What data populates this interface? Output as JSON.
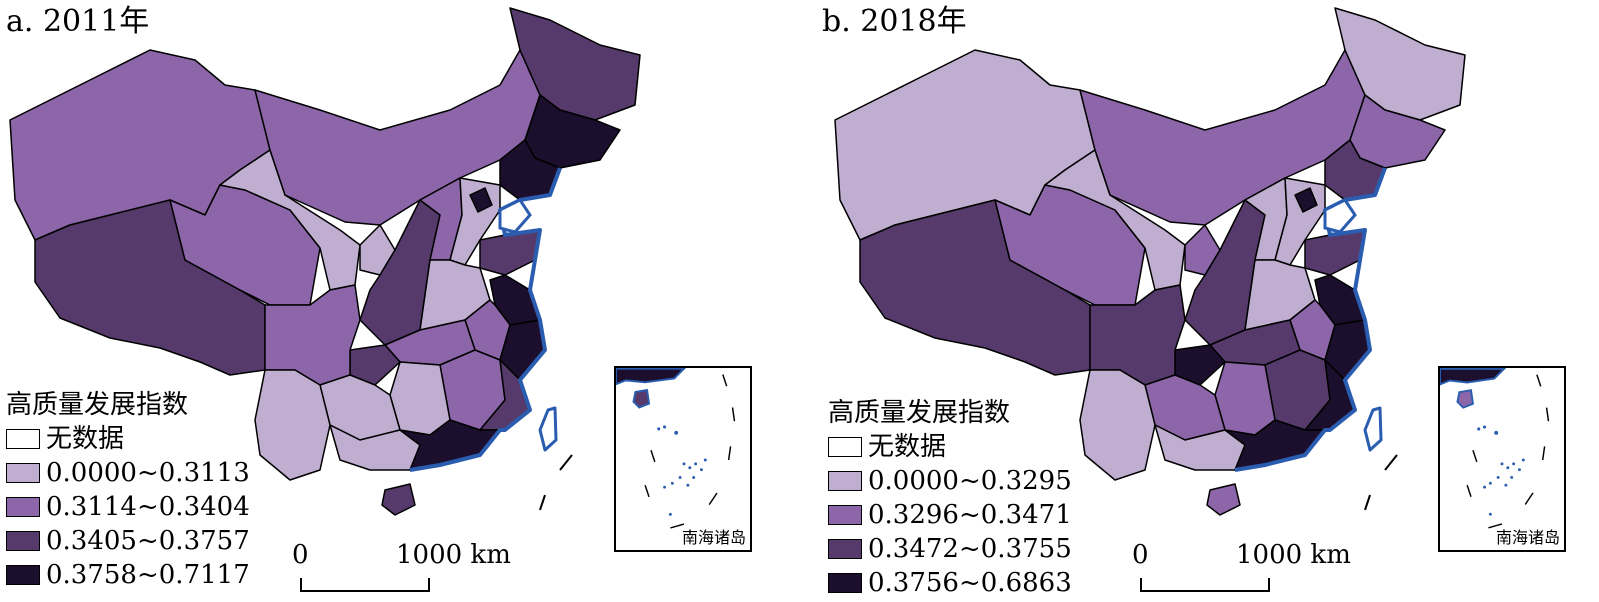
{
  "legend_title": "高质量发展指数",
  "legend_nodata": "无数据",
  "scale_zero": "0",
  "scale_max": "1000 km",
  "inset_label": "南海诸岛",
  "colors": {
    "class1": "#bfaed0",
    "class2": "#8c66a9",
    "class3": "#553a6b",
    "class4": "#1c0f2e",
    "nodata": "#ffffff",
    "coast": "#2a5db0"
  },
  "panels": [
    {
      "title": "a. 2011年",
      "classes": [
        "0.0000~0.3113",
        "0.3114~0.3404",
        "0.3405~0.3757",
        "0.3758~0.7117"
      ]
    },
    {
      "title": "b. 2018年",
      "classes": [
        "0.0000~0.3295",
        "0.3296~0.3471",
        "0.3472~0.3755",
        "0.3756~0.6863"
      ]
    }
  ]
}
